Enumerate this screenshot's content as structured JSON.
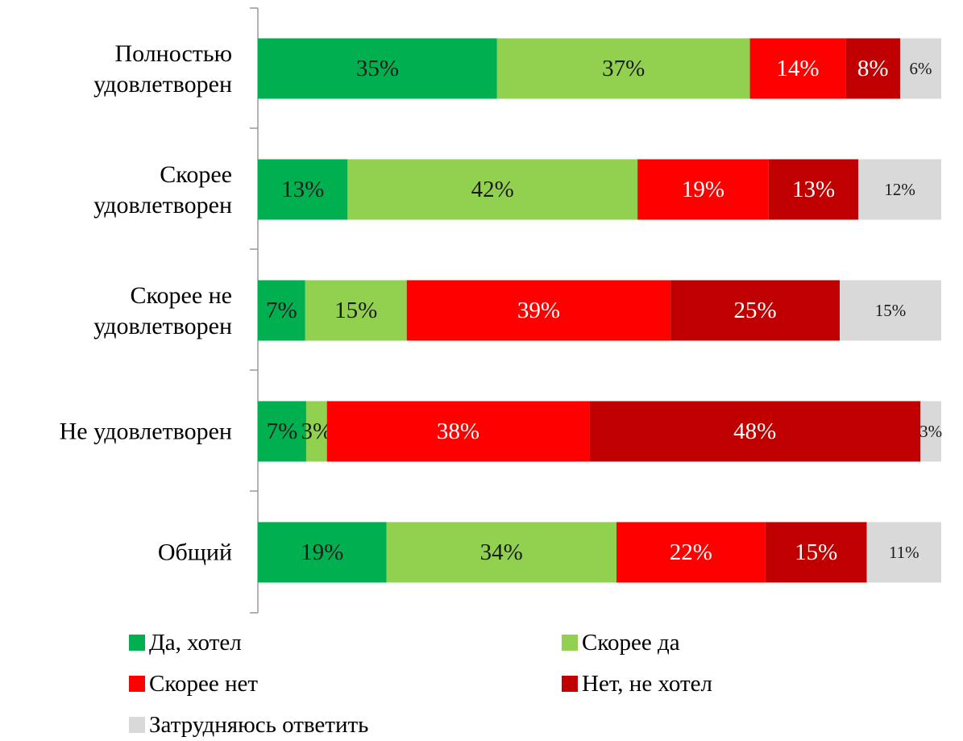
{
  "chart_data": {
    "type": "percent-stacked-barh",
    "categories": [
      "Полностью\nудовлетворен",
      "Скорее\nудовлетворен",
      "Скорее не\nудовлетворен",
      "Не удовлетворен",
      "Общий"
    ],
    "series": [
      {
        "name": "Да, хотел",
        "color": "#00B050",
        "label_color": "#1a1a1a",
        "values": [
          35,
          13,
          7,
          7,
          19
        ],
        "value_labels": [
          "35%",
          "13%",
          "7%",
          "7%",
          "19%"
        ]
      },
      {
        "name": "Скорее да",
        "color": "#92D050",
        "label_color": "#1a1a1a",
        "values": [
          37,
          42,
          15,
          3,
          34
        ],
        "value_labels": [
          "37%",
          "42%",
          "15%",
          "3%",
          "34%"
        ]
      },
      {
        "name": "Скорее нет",
        "color": "#FF0000",
        "label_color": "#ffffff",
        "values": [
          14,
          19,
          39,
          38,
          22
        ],
        "value_labels": [
          "14%",
          "19%",
          "39%",
          "38%",
          "22%"
        ]
      },
      {
        "name": "Нет, не хотел",
        "color": "#C00000",
        "label_color": "#ffffff",
        "values": [
          8,
          13,
          25,
          48,
          15
        ],
        "value_labels": [
          "8%",
          "13%",
          "25%",
          "48%",
          "15%"
        ]
      },
      {
        "name": "Затрудняюсь ответить",
        "color": "#D9D9D9",
        "label_color": "#1a1a1a",
        "values": [
          6,
          12,
          15,
          3,
          11
        ],
        "value_labels": [
          "6%",
          "12%",
          "15%",
          "3%",
          "11%"
        ]
      }
    ],
    "legend": "bottom"
  }
}
